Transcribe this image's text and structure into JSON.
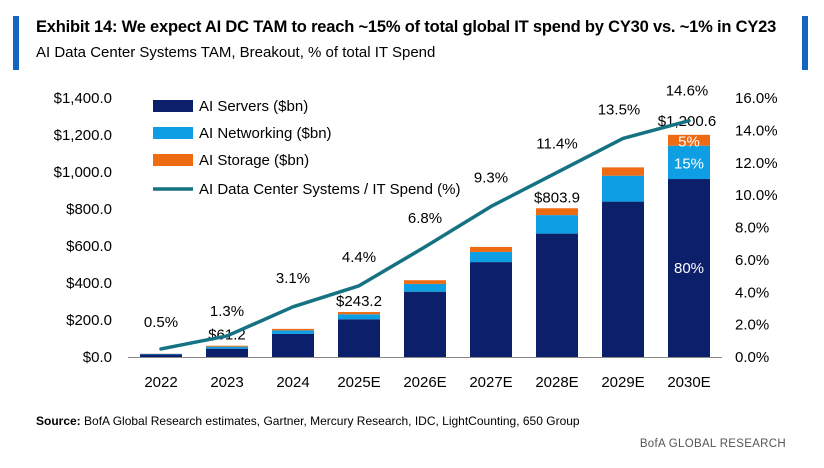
{
  "header": {
    "title": "Exhibit 14: We expect AI DC TAM to reach ~15% of total global IT spend by CY30 vs. ~1% in CY23",
    "subtitle": "AI Data Center Systems TAM, Breakout, % of total IT Spend"
  },
  "footer": {
    "source_label": "Source:",
    "source_text": " BofA Global Research estimates, Gartner, Mercury Research, IDC, LightCounting, 650 Group",
    "brand": "BofA GLOBAL RESEARCH"
  },
  "colors": {
    "accent": "#1565c0",
    "servers": "#0b1f6b",
    "networking": "#0e9ee3",
    "storage": "#ee6a13",
    "line": "#157282"
  },
  "chart_data": {
    "type": "bar",
    "stacked": true,
    "categories": [
      "2022",
      "2023",
      "2024",
      "2025E",
      "2026E",
      "2027E",
      "2028E",
      "2029E",
      "2030E"
    ],
    "series": [
      {
        "name": "AI Servers ($bn)",
        "values": [
          14,
          45,
          125,
          204,
          353,
          513,
          667,
          840,
          962
        ]
      },
      {
        "name": "AI Networking ($bn)",
        "values": [
          3,
          11,
          19,
          27,
          42,
          55,
          100,
          140,
          180
        ]
      },
      {
        "name": "AI Storage ($bn)",
        "values": [
          1,
          5,
          8,
          12,
          20,
          27,
          37,
          45,
          59
        ]
      }
    ],
    "line_series": {
      "name": "AI Data Center Systems / IT Spend (%)",
      "values": [
        0.5,
        1.3,
        3.1,
        4.4,
        6.8,
        9.3,
        11.4,
        13.5,
        14.6
      ],
      "labels": [
        "0.5%",
        "1.3%",
        "3.1%",
        "4.4%",
        "6.8%",
        "9.3%",
        "11.4%",
        "13.5%",
        "14.6%"
      ]
    },
    "total_labels": [
      "",
      "$61.2",
      "",
      "$243.2",
      "",
      "",
      "$803.9",
      "",
      "$1,200.6"
    ],
    "in_bar_labels": {
      "servers_2030": "80%",
      "networking_2030": "15%",
      "storage_2030": "5%"
    },
    "y_left": {
      "min": 0,
      "max": 1400,
      "step": 200,
      "tick_labels": [
        "$0.0",
        "$200.0",
        "$400.0",
        "$600.0",
        "$800.0",
        "$1,000.0",
        "$1,200.0",
        "$1,400.0"
      ]
    },
    "y_right": {
      "min": 0,
      "max": 16,
      "step": 2,
      "tick_labels": [
        "0.0%",
        "2.0%",
        "4.0%",
        "6.0%",
        "8.0%",
        "10.0%",
        "12.0%",
        "14.0%",
        "16.0%"
      ]
    },
    "legend": [
      "AI Servers ($bn)",
      "AI Networking ($bn)",
      "AI Storage ($bn)",
      "AI Data Center Systems / IT Spend (%)"
    ],
    "legend_position": "top-left",
    "grid": false
  }
}
